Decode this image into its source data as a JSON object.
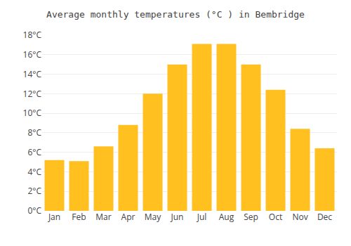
{
  "chart_data": {
    "type": "bar",
    "title": "Average monthly temperatures (°C ) in Bembridge",
    "categories": [
      "Jan",
      "Feb",
      "Mar",
      "Apr",
      "May",
      "Jun",
      "Jul",
      "Aug",
      "Sep",
      "Oct",
      "Nov",
      "Dec"
    ],
    "values": [
      5.2,
      5.1,
      6.6,
      8.8,
      12.0,
      15.0,
      17.1,
      17.1,
      15.0,
      12.4,
      8.4,
      6.4
    ],
    "color": "#FFC020",
    "ylim": [
      0,
      18
    ],
    "yticks": [
      {
        "value": 0,
        "label": "0°C"
      },
      {
        "value": 2,
        "label": "2°C"
      },
      {
        "value": 4,
        "label": "4°C"
      },
      {
        "value": 6,
        "label": "6°C"
      },
      {
        "value": 8,
        "label": "8°C"
      },
      {
        "value": 10,
        "label": "10°C"
      },
      {
        "value": 12,
        "label": "12°C"
      },
      {
        "value": 14,
        "label": "14°C"
      },
      {
        "value": 16,
        "label": "16°C"
      },
      {
        "value": 18,
        "label": "18°C"
      }
    ],
    "grid": true
  }
}
